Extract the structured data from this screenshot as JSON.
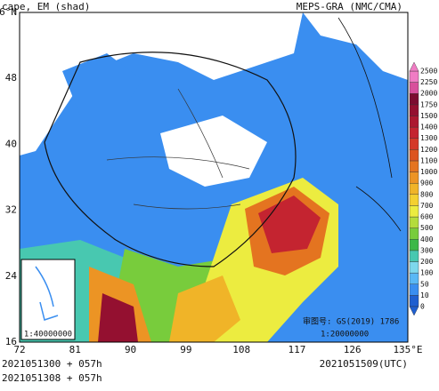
{
  "header": {
    "left": "cape, EM (shad)",
    "right": "MEPS-GRA (NMC/CMA)"
  },
  "lat_labels": [
    "6°N",
    "48",
    "40",
    "32",
    "24",
    "16"
  ],
  "lon_labels": [
    "72",
    "81",
    "90",
    "99",
    "108",
    "117",
    "126",
    "135°E"
  ],
  "colorbar": {
    "labels": [
      "0",
      "10",
      "50",
      "100",
      "200",
      "300",
      "400",
      "500",
      "600",
      "700",
      "800",
      "900",
      "1000",
      "1100",
      "1200",
      "1300",
      "1400",
      "1500",
      "1750",
      "2000",
      "2250",
      "2500"
    ],
    "colors": [
      "#1f5fd0",
      "#3a8ef0",
      "#5ab8f5",
      "#7ed8ec",
      "#48c8b0",
      "#3cb848",
      "#78cc3c",
      "#b4dc3c",
      "#ecec40",
      "#f4d030",
      "#f0b428",
      "#ec9424",
      "#e47420",
      "#dc5420",
      "#d43828",
      "#c42430",
      "#ac1830",
      "#941030",
      "#7c0c30",
      "#d8509c",
      "#f07cc4"
    ]
  },
  "inset": {
    "scale": "1:40000000"
  },
  "stamp": {
    "code": "审图号: GS(2019) 1786",
    "scale": "1:20000000"
  },
  "footer": {
    "line1": "2021051300 + 057h",
    "line2": "2021051308 + 057h",
    "valid": "2021051509(UTC)"
  }
}
